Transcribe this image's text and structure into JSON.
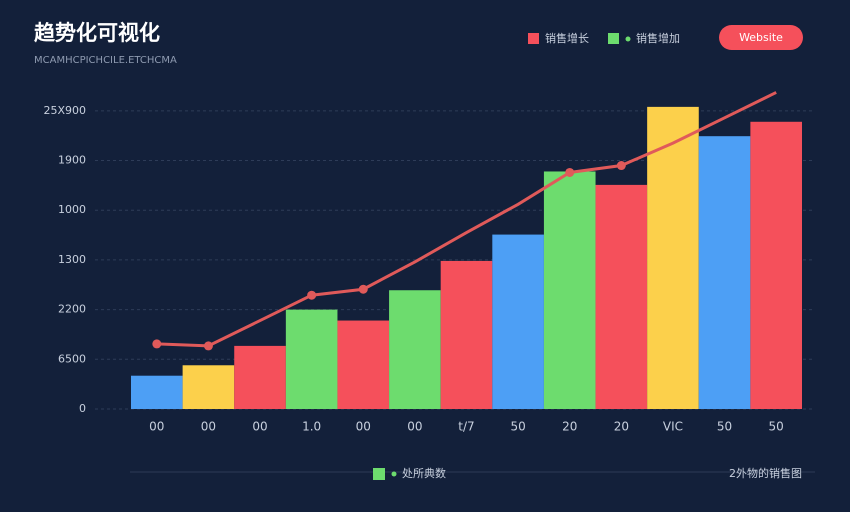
{
  "chart_data": {
    "type": "bar_line",
    "title": "趋势化可视化",
    "subtitle": "MCAMHCPICHCILE.ETCHCMA",
    "legend": [
      "销售增长",
      "销售增加"
    ],
    "button": "Website",
    "footer_legend": "处所典数",
    "footer_note": "2外物的销售图",
    "categories": [
      "00",
      "00",
      "00",
      "1.0",
      "00",
      "00",
      "t/7",
      "50",
      "20",
      "20",
      "VIC",
      "50",
      "50"
    ],
    "series": [
      {
        "name": "销售增长",
        "type": "bar",
        "colors": [
          "#4d9ff5",
          "#fcd04b",
          "#f5505b",
          "#6ddc6e",
          "#f5505b",
          "#6ddc6e",
          "#f5505b",
          "#4d9ff5",
          "#6ddc6e",
          "#f5505b",
          "#fcd04b",
          "#4d9ff5",
          "#f5505b"
        ],
        "values": [
          0.67,
          0.88,
          1.27,
          2.0,
          1.78,
          2.39,
          2.98,
          3.51,
          4.78,
          4.51,
          6.08,
          5.49,
          5.78
        ]
      },
      {
        "name": "销售增加",
        "type": "line",
        "color": "#e05a5a",
        "marker_indices": [
          0,
          1,
          3,
          4,
          8,
          9
        ],
        "values": [
          1.31,
          1.27,
          1.78,
          2.29,
          2.41,
          2.96,
          3.55,
          4.12,
          4.76,
          4.9,
          5.35,
          5.86,
          6.37
        ]
      }
    ],
    "ylim": [
      0,
      6.5
    ],
    "yticks": [
      {
        "value": 0,
        "label": "0"
      },
      {
        "value": 1,
        "label": "6500"
      },
      {
        "value": 2,
        "label": "2200"
      },
      {
        "value": 3,
        "label": "1300"
      },
      {
        "value": 4,
        "label": "1000"
      },
      {
        "value": 5,
        "label": "1900"
      },
      {
        "value": 6,
        "label": "25X900"
      }
    ],
    "grid": true
  }
}
